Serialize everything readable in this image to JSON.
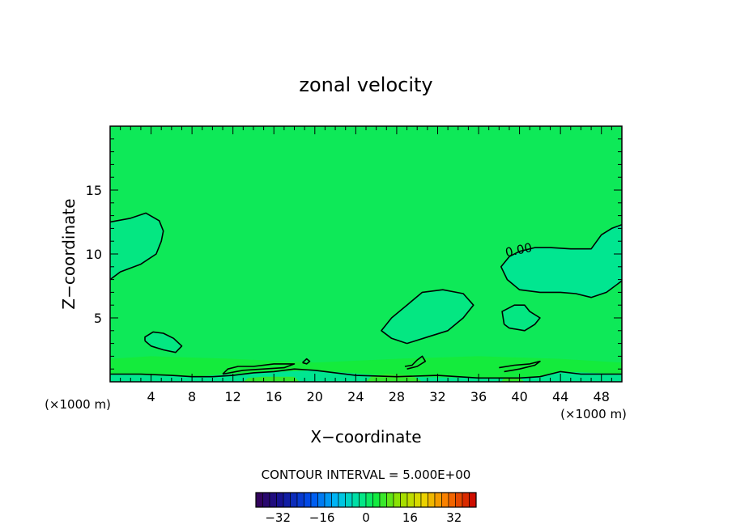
{
  "chart_data": {
    "type": "heatmap",
    "title": "zonal velocity",
    "xlabel": "X−coordinate",
    "ylabel": "Z−coordinate",
    "x_unit_left": "(×1000 m)",
    "x_unit_right": "(×1000 m)",
    "xlim": [
      0,
      50
    ],
    "ylim": [
      0,
      20
    ],
    "x_ticks": [
      4,
      8,
      12,
      16,
      20,
      24,
      28,
      32,
      36,
      40,
      44,
      48
    ],
    "y_ticks": [
      5,
      10,
      15
    ],
    "x_minor_step": 1,
    "y_minor_step": 1,
    "background_value": 2,
    "contour_label": "0.00",
    "contour_label_pos": [
      40,
      10.0
    ],
    "contour_interval_text": "CONTOUR INTERVAL = 5.000E+00",
    "colorbar": {
      "range": [
        -40,
        40
      ],
      "n_bands": 32,
      "ticks": [
        -32,
        -16,
        0,
        16,
        32
      ],
      "tick_labels": [
        "−32",
        "−16",
        "0",
        "16",
        "32"
      ]
    },
    "zero_contours": [
      {
        "name": "upper-left lobe",
        "points": [
          [
            0,
            8
          ],
          [
            1,
            8.6
          ],
          [
            3,
            9.2
          ],
          [
            4.5,
            10
          ],
          [
            5,
            11
          ],
          [
            5.2,
            11.8
          ],
          [
            4.8,
            12.6
          ],
          [
            3.5,
            13.2
          ],
          [
            2,
            12.8
          ],
          [
            0,
            12.5
          ]
        ]
      },
      {
        "name": "small lobe near x=5",
        "points": [
          [
            3.4,
            3.2
          ],
          [
            4,
            2.8
          ],
          [
            5.2,
            2.5
          ],
          [
            6.4,
            2.3
          ],
          [
            7,
            2.8
          ],
          [
            6.2,
            3.4
          ],
          [
            5.2,
            3.8
          ],
          [
            4.2,
            3.9
          ],
          [
            3.4,
            3.5
          ],
          [
            3.4,
            3.2
          ]
        ]
      },
      {
        "name": "middle lobe",
        "points": [
          [
            29,
            3
          ],
          [
            31,
            3.5
          ],
          [
            33,
            4
          ],
          [
            34.5,
            5
          ],
          [
            35.5,
            6
          ],
          [
            34.5,
            6.9
          ],
          [
            32.5,
            7.2
          ],
          [
            30.5,
            7
          ],
          [
            29,
            6
          ],
          [
            27.5,
            5
          ],
          [
            26.5,
            4
          ],
          [
            27.5,
            3.4
          ],
          [
            29,
            3
          ]
        ]
      },
      {
        "name": "small lobe near x=40",
        "points": [
          [
            38.5,
            4.5
          ],
          [
            39,
            4.2
          ],
          [
            40.5,
            4
          ],
          [
            41.5,
            4.5
          ],
          [
            42,
            5
          ],
          [
            41,
            5.5
          ],
          [
            40.5,
            6
          ],
          [
            39.5,
            6
          ],
          [
            38.3,
            5.5
          ],
          [
            38.5,
            4.5
          ]
        ]
      },
      {
        "name": "right region upper boundary",
        "points": [
          [
            39,
            9.8
          ],
          [
            40,
            10.2
          ],
          [
            41.5,
            10.5
          ],
          [
            43,
            10.5
          ],
          [
            45,
            10.4
          ],
          [
            47,
            10.4
          ],
          [
            48,
            11.5
          ],
          [
            49,
            12
          ],
          [
            50,
            12.3
          ]
        ]
      },
      {
        "name": "right region lower boundary",
        "points": [
          [
            39,
            9.8
          ],
          [
            38.2,
            9
          ],
          [
            38.8,
            8
          ],
          [
            40,
            7.2
          ],
          [
            42,
            7
          ],
          [
            44,
            7
          ],
          [
            45.5,
            6.9
          ],
          [
            47,
            6.6
          ],
          [
            48.5,
            7
          ],
          [
            50,
            7.9
          ]
        ]
      },
      {
        "name": "near-surface contour",
        "points": [
          [
            0,
            0.6
          ],
          [
            3,
            0.6
          ],
          [
            6,
            0.5
          ],
          [
            8,
            0.4
          ],
          [
            10,
            0.4
          ],
          [
            12,
            0.5
          ],
          [
            14,
            0.7
          ],
          [
            16,
            0.8
          ],
          [
            18,
            1.0
          ],
          [
            20,
            0.9
          ],
          [
            24,
            0.5
          ],
          [
            28,
            0.4
          ],
          [
            32,
            0.5
          ],
          [
            36,
            0.3
          ],
          [
            40,
            0.3
          ],
          [
            42,
            0.4
          ],
          [
            44,
            0.8
          ],
          [
            46,
            0.6
          ],
          [
            48,
            0.6
          ],
          [
            50,
            0.6
          ]
        ]
      },
      {
        "name": "contour segment x=11-18",
        "points": [
          [
            11,
            0.6
          ],
          [
            11.5,
            1.0
          ],
          [
            12.5,
            1.2
          ],
          [
            14,
            1.2
          ],
          [
            16,
            1.4
          ],
          [
            18,
            1.4
          ],
          [
            17,
            1.1
          ],
          [
            15,
            1.0
          ],
          [
            13,
            0.9
          ],
          [
            11,
            0.6
          ]
        ]
      },
      {
        "name": "small loop near x=19",
        "points": [
          [
            18.8,
            1.5
          ],
          [
            19.2,
            1.8
          ],
          [
            19.5,
            1.6
          ],
          [
            19.2,
            1.4
          ],
          [
            18.8,
            1.5
          ]
        ]
      },
      {
        "name": "contour segment x=29-31",
        "points": [
          [
            28.8,
            1.2
          ],
          [
            29.5,
            1.3
          ],
          [
            30,
            1.7
          ],
          [
            30.5,
            2.0
          ],
          [
            30.8,
            1.6
          ],
          [
            30,
            1.2
          ],
          [
            29,
            1.0
          ]
        ]
      },
      {
        "name": "contour segment x=38-42",
        "points": [
          [
            38,
            1.1
          ],
          [
            39.5,
            1.3
          ],
          [
            41,
            1.4
          ],
          [
            42,
            1.6
          ],
          [
            41.5,
            1.3
          ],
          [
            40,
            1.0
          ],
          [
            38.5,
            0.8
          ]
        ]
      }
    ],
    "shaded_regions": [
      {
        "name": "negative pocket upper-left",
        "value": -1,
        "points": [
          [
            0,
            8
          ],
          [
            1,
            8.6
          ],
          [
            3,
            9.2
          ],
          [
            4.5,
            10
          ],
          [
            5,
            11
          ],
          [
            5.2,
            11.8
          ],
          [
            4.8,
            12.6
          ],
          [
            3.5,
            13.2
          ],
          [
            2,
            12.8
          ],
          [
            0,
            12.5
          ]
        ]
      },
      {
        "name": "negative pocket x=5",
        "value": -1,
        "points": [
          [
            3.4,
            3.2
          ],
          [
            4,
            2.8
          ],
          [
            5.2,
            2.5
          ],
          [
            6.4,
            2.3
          ],
          [
            7,
            2.8
          ],
          [
            6.2,
            3.4
          ],
          [
            5.2,
            3.8
          ],
          [
            4.2,
            3.9
          ],
          [
            3.4,
            3.5
          ]
        ]
      },
      {
        "name": "negative pocket middle",
        "value": -1,
        "points": [
          [
            29,
            3
          ],
          [
            31,
            3.5
          ],
          [
            33,
            4
          ],
          [
            34.5,
            5
          ],
          [
            35.5,
            6
          ],
          [
            34.5,
            6.9
          ],
          [
            32.5,
            7.2
          ],
          [
            30.5,
            7
          ],
          [
            29,
            6
          ],
          [
            27.5,
            5
          ],
          [
            26.5,
            4
          ],
          [
            27.5,
            3.4
          ]
        ]
      },
      {
        "name": "negative pocket x=40",
        "value": -1,
        "points": [
          [
            38.5,
            4.5
          ],
          [
            39,
            4.2
          ],
          [
            40.5,
            4
          ],
          [
            41.5,
            4.5
          ],
          [
            42,
            5
          ],
          [
            41,
            5.5
          ],
          [
            40.5,
            6
          ],
          [
            39.5,
            6
          ],
          [
            38.3,
            5.5
          ]
        ]
      },
      {
        "name": "negative region right",
        "value": -2,
        "points": [
          [
            39,
            9.8
          ],
          [
            40,
            10.2
          ],
          [
            41.5,
            10.5
          ],
          [
            43,
            10.5
          ],
          [
            45,
            10.4
          ],
          [
            47,
            10.4
          ],
          [
            48,
            11.5
          ],
          [
            49,
            12
          ],
          [
            50,
            12.3
          ],
          [
            50,
            7.9
          ],
          [
            48.5,
            7
          ],
          [
            47,
            6.6
          ],
          [
            45.5,
            6.9
          ],
          [
            44,
            7
          ],
          [
            42,
            7
          ],
          [
            40,
            7.2
          ],
          [
            38.8,
            8
          ],
          [
            38.2,
            9
          ]
        ]
      },
      {
        "name": "positive band near surface",
        "value": 4,
        "points": [
          [
            0,
            0
          ],
          [
            50,
            0
          ],
          [
            50,
            1.5
          ],
          [
            44,
            1.8
          ],
          [
            36,
            2.0
          ],
          [
            28,
            1.8
          ],
          [
            20,
            1.5
          ],
          [
            12,
            1.8
          ],
          [
            4,
            2.0
          ],
          [
            0,
            1.8
          ]
        ]
      },
      {
        "name": "negative strip bottom",
        "value": -2,
        "points": [
          [
            0,
            0
          ],
          [
            50,
            0
          ],
          [
            50,
            0.6
          ],
          [
            44,
            0.8
          ],
          [
            42,
            0.4
          ],
          [
            36,
            0.3
          ],
          [
            28,
            0.4
          ],
          [
            20,
            0.9
          ],
          [
            14,
            0.7
          ],
          [
            8,
            0.4
          ],
          [
            0,
            0.6
          ]
        ]
      },
      {
        "name": "positive pocket x=26-30",
        "value": 6,
        "points": [
          [
            25,
            0
          ],
          [
            30.5,
            0
          ],
          [
            29.5,
            0.5
          ],
          [
            27,
            0.6
          ],
          [
            25.5,
            0.4
          ]
        ]
      },
      {
        "name": "positive pocket x=13-18",
        "value": 6,
        "points": [
          [
            13,
            0
          ],
          [
            18.5,
            0
          ],
          [
            18,
            0.4
          ],
          [
            15,
            0.4
          ],
          [
            13.5,
            0.3
          ]
        ]
      },
      {
        "name": "positive pocket x=38-40",
        "value": 6,
        "points": [
          [
            38.2,
            0
          ],
          [
            40.5,
            0
          ],
          [
            40,
            0.3
          ],
          [
            38.5,
            0.3
          ]
        ]
      }
    ]
  }
}
